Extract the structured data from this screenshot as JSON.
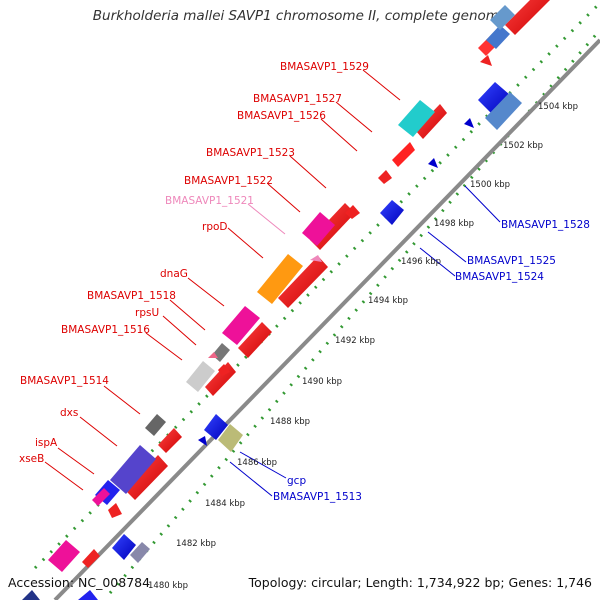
{
  "title": "Burkholderia mallei SAVP1 chromosome II, complete genome",
  "accession_label": "Accession: NC_008784",
  "summary_label": "Topology: circular; Length: 1,734,922 bp; Genes: 1,746",
  "colors": {
    "forward_label": "#dd0000",
    "reverse_label": "#0000cc",
    "pseudo_label": "#ee88bb",
    "backbone": "#888888",
    "tick_dots": "#339933"
  },
  "scale_ticks": [
    {
      "label": "1480 kbp"
    },
    {
      "label": "1482 kbp"
    },
    {
      "label": "1484 kbp"
    },
    {
      "label": "1486 kbp"
    },
    {
      "label": "1488 kbp"
    },
    {
      "label": "1490 kbp"
    },
    {
      "label": "1492 kbp"
    },
    {
      "label": "1494 kbp"
    },
    {
      "label": "1496 kbp"
    },
    {
      "label": "1498 kbp"
    },
    {
      "label": "1500 kbp"
    },
    {
      "label": "1502 kbp"
    },
    {
      "label": "1504 kbp"
    }
  ],
  "forward_labels": [
    {
      "name": "BMASAVP1_1529",
      "color": "#dd0000"
    },
    {
      "name": "BMASAVP1_1527",
      "color": "#dd0000"
    },
    {
      "name": "BMASAVP1_1526",
      "color": "#dd0000"
    },
    {
      "name": "BMASAVP1_1523",
      "color": "#dd0000"
    },
    {
      "name": "BMASAVP1_1522",
      "color": "#dd0000"
    },
    {
      "name": "BMASAVP1_1521",
      "color": "#ee88bb"
    },
    {
      "name": "rpoD",
      "color": "#dd0000"
    },
    {
      "name": "dnaG",
      "color": "#dd0000"
    },
    {
      "name": "BMASAVP1_1518",
      "color": "#dd0000"
    },
    {
      "name": "rpsU",
      "color": "#dd0000"
    },
    {
      "name": "BMASAVP1_1516",
      "color": "#dd0000"
    },
    {
      "name": "BMASAVP1_1514",
      "color": "#dd0000"
    },
    {
      "name": "dxs",
      "color": "#dd0000"
    },
    {
      "name": "ispA",
      "color": "#dd0000"
    },
    {
      "name": "xseB",
      "color": "#dd0000"
    }
  ],
  "reverse_labels": [
    {
      "name": "BMASAVP1_1528"
    },
    {
      "name": "BMASAVP1_1525"
    },
    {
      "name": "BMASAVP1_1524"
    },
    {
      "name": "gcp"
    },
    {
      "name": "BMASAVP1_1513"
    }
  ]
}
